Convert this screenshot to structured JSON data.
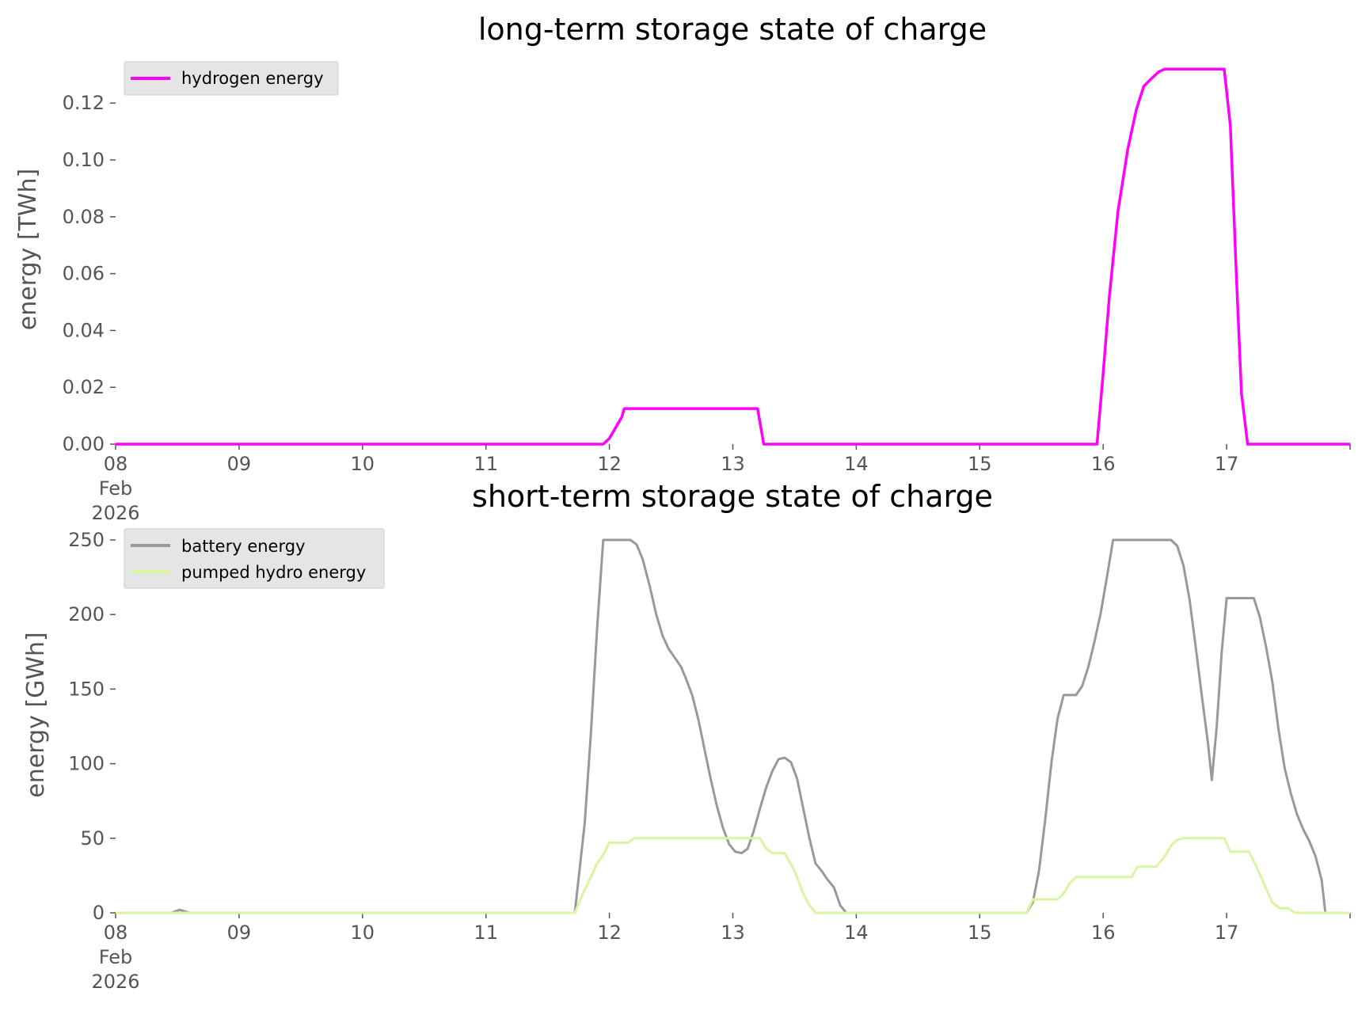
{
  "chart_data": [
    {
      "type": "line",
      "title": "long-term storage state of charge",
      "xlabel": "",
      "ylabel": "energy [TWh]",
      "x_unit": "days",
      "xlim": [
        8,
        18
      ],
      "ylim": [
        0,
        0.1365
      ],
      "x_ticks": [
        {
          "value": 8,
          "lines": [
            "08",
            "Feb",
            "2026"
          ]
        },
        {
          "value": 9,
          "lines": [
            "09"
          ]
        },
        {
          "value": 10,
          "lines": [
            "10"
          ]
        },
        {
          "value": 11,
          "lines": [
            "11"
          ]
        },
        {
          "value": 12,
          "lines": [
            "12"
          ]
        },
        {
          "value": 13,
          "lines": [
            "13"
          ]
        },
        {
          "value": 14,
          "lines": [
            "14"
          ]
        },
        {
          "value": 15,
          "lines": [
            "15"
          ]
        },
        {
          "value": 16,
          "lines": [
            "16"
          ]
        },
        {
          "value": 17,
          "lines": [
            "17"
          ]
        },
        {
          "value": 18,
          "lines": [
            ""
          ]
        }
      ],
      "y_ticks": [
        {
          "value": 0,
          "label": "0.00"
        },
        {
          "value": 0.02,
          "label": "0.02"
        },
        {
          "value": 0.04,
          "label": "0.04"
        },
        {
          "value": 0.06,
          "label": "0.06"
        },
        {
          "value": 0.08,
          "label": "0.08"
        },
        {
          "value": 0.1,
          "label": "0.10"
        },
        {
          "value": 0.12,
          "label": "0.12"
        }
      ],
      "grid": false,
      "legend": "top-left",
      "series": [
        {
          "name": "hydrogen energy",
          "color": "#ff00ff",
          "points": [
            [
              8.0,
              0
            ],
            [
              11.95,
              0
            ],
            [
              12.0,
              0.002
            ],
            [
              12.1,
              0.0095
            ],
            [
              12.12,
              0.0125
            ],
            [
              13.2,
              0.0125
            ],
            [
              13.25,
              0
            ],
            [
              15.95,
              0
            ],
            [
              16.0,
              0.025
            ],
            [
              16.05,
              0.052
            ],
            [
              16.12,
              0.082
            ],
            [
              16.2,
              0.104
            ],
            [
              16.27,
              0.118
            ],
            [
              16.33,
              0.126
            ],
            [
              16.4,
              0.129
            ],
            [
              16.45,
              0.131
            ],
            [
              16.5,
              0.132
            ],
            [
              16.98,
              0.132
            ],
            [
              17.03,
              0.112
            ],
            [
              17.08,
              0.058
            ],
            [
              17.12,
              0.018
            ],
            [
              17.17,
              0
            ],
            [
              18.0,
              0
            ]
          ]
        }
      ]
    },
    {
      "type": "line",
      "title": "short-term storage state of charge",
      "xlabel": "",
      "ylabel": "energy [GWh]",
      "x_unit": "days",
      "xlim": [
        8,
        18
      ],
      "ylim": [
        0,
        250
      ],
      "x_ticks": [
        {
          "value": 8,
          "lines": [
            "08",
            "Feb",
            "2026"
          ]
        },
        {
          "value": 9,
          "lines": [
            "09"
          ]
        },
        {
          "value": 10,
          "lines": [
            "10"
          ]
        },
        {
          "value": 11,
          "lines": [
            "11"
          ]
        },
        {
          "value": 12,
          "lines": [
            "12"
          ]
        },
        {
          "value": 13,
          "lines": [
            "13"
          ]
        },
        {
          "value": 14,
          "lines": [
            "14"
          ]
        },
        {
          "value": 15,
          "lines": [
            "15"
          ]
        },
        {
          "value": 16,
          "lines": [
            "16"
          ]
        },
        {
          "value": 17,
          "lines": [
            "17"
          ]
        },
        {
          "value": 18,
          "lines": [
            ""
          ]
        }
      ],
      "y_ticks": [
        {
          "value": 0,
          "label": "0"
        },
        {
          "value": 50,
          "label": "50"
        },
        {
          "value": 100,
          "label": "100"
        },
        {
          "value": 150,
          "label": "150"
        },
        {
          "value": 200,
          "label": "200"
        },
        {
          "value": 250,
          "label": "250"
        }
      ],
      "grid": false,
      "legend": "top-left",
      "series": [
        {
          "name": "battery energy",
          "color": "#999999",
          "points": [
            [
              8.0,
              0
            ],
            [
              8.45,
              0
            ],
            [
              8.52,
              2
            ],
            [
              8.6,
              0
            ],
            [
              11.72,
              0
            ],
            [
              11.8,
              60
            ],
            [
              11.85,
              120
            ],
            [
              11.9,
              190
            ],
            [
              11.95,
              250
            ],
            [
              12.17,
              250
            ],
            [
              12.22,
              247
            ],
            [
              12.27,
              237
            ],
            [
              12.33,
              218
            ],
            [
              12.38,
              200
            ],
            [
              12.43,
              186
            ],
            [
              12.48,
              177
            ],
            [
              12.53,
              171
            ],
            [
              12.58,
              165
            ],
            [
              12.62,
              157
            ],
            [
              12.67,
              146
            ],
            [
              12.72,
              130
            ],
            [
              12.77,
              110
            ],
            [
              12.82,
              90
            ],
            [
              12.87,
              72
            ],
            [
              12.92,
              57
            ],
            [
              12.97,
              46
            ],
            [
              13.02,
              41
            ],
            [
              13.07,
              40
            ],
            [
              13.12,
              43
            ],
            [
              13.17,
              55
            ],
            [
              13.22,
              70
            ],
            [
              13.27,
              84
            ],
            [
              13.32,
              95
            ],
            [
              13.37,
              103
            ],
            [
              13.42,
              104
            ],
            [
              13.47,
              101
            ],
            [
              13.52,
              90
            ],
            [
              13.57,
              70
            ],
            [
              13.62,
              50
            ],
            [
              13.67,
              33
            ],
            [
              13.72,
              28
            ],
            [
              13.77,
              22
            ],
            [
              13.82,
              17
            ],
            [
              13.87,
              5
            ],
            [
              13.92,
              0
            ],
            [
              15.38,
              0
            ],
            [
              15.43,
              7
            ],
            [
              15.48,
              28
            ],
            [
              15.53,
              62
            ],
            [
              15.58,
              100
            ],
            [
              15.63,
              130
            ],
            [
              15.68,
              146
            ],
            [
              15.78,
              146
            ],
            [
              15.83,
              152
            ],
            [
              15.88,
              165
            ],
            [
              15.93,
              182
            ],
            [
              15.98,
              201
            ],
            [
              16.03,
              225
            ],
            [
              16.08,
              250
            ],
            [
              16.55,
              250
            ],
            [
              16.6,
              246
            ],
            [
              16.65,
              233
            ],
            [
              16.7,
              210
            ],
            [
              16.75,
              178
            ],
            [
              16.8,
              145
            ],
            [
              16.85,
              113
            ],
            [
              16.88,
              89
            ],
            [
              16.92,
              125
            ],
            [
              16.96,
              175
            ],
            [
              17.0,
              211
            ],
            [
              17.22,
              211
            ],
            [
              17.27,
              198
            ],
            [
              17.32,
              178
            ],
            [
              17.37,
              155
            ],
            [
              17.42,
              123
            ],
            [
              17.47,
              97
            ],
            [
              17.52,
              80
            ],
            [
              17.57,
              66
            ],
            [
              17.62,
              56
            ],
            [
              17.67,
              48
            ],
            [
              17.72,
              38
            ],
            [
              17.77,
              22
            ],
            [
              17.8,
              0
            ],
            [
              18.0,
              0
            ]
          ]
        },
        {
          "name": "pumped hydro energy",
          "color": "#d8f5a0",
          "points": [
            [
              8.0,
              0
            ],
            [
              11.72,
              0
            ],
            [
              11.78,
              12
            ],
            [
              11.85,
              24
            ],
            [
              11.9,
              33
            ],
            [
              11.95,
              39
            ],
            [
              12.0,
              47
            ],
            [
              12.15,
              47
            ],
            [
              12.2,
              50
            ],
            [
              13.22,
              50
            ],
            [
              13.27,
              43
            ],
            [
              13.32,
              40
            ],
            [
              13.42,
              40
            ],
            [
              13.5,
              28
            ],
            [
              13.57,
              13
            ],
            [
              13.62,
              5
            ],
            [
              13.67,
              0
            ],
            [
              15.38,
              0
            ],
            [
              15.43,
              9
            ],
            [
              15.63,
              9
            ],
            [
              15.68,
              13
            ],
            [
              15.73,
              20
            ],
            [
              15.78,
              24
            ],
            [
              16.23,
              24
            ],
            [
              16.28,
              31
            ],
            [
              16.43,
              31
            ],
            [
              16.5,
              38
            ],
            [
              16.55,
              45
            ],
            [
              16.6,
              49
            ],
            [
              16.65,
              50
            ],
            [
              16.98,
              50
            ],
            [
              17.03,
              41
            ],
            [
              17.18,
              41
            ],
            [
              17.23,
              33
            ],
            [
              17.3,
              20
            ],
            [
              17.37,
              7
            ],
            [
              17.43,
              3
            ],
            [
              17.5,
              3
            ],
            [
              17.55,
              0
            ],
            [
              18.0,
              0
            ]
          ]
        }
      ]
    }
  ]
}
